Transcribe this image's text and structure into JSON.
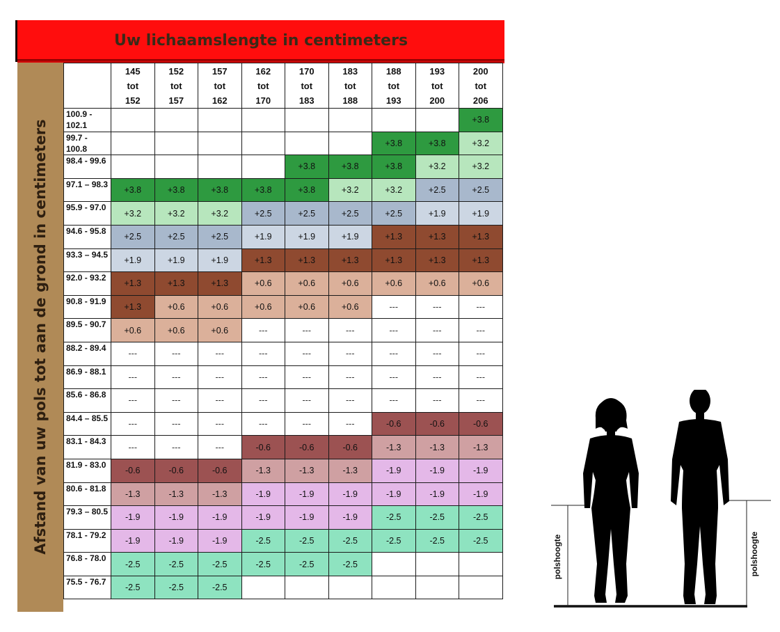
{
  "title": "Uw lichaamslengte in centimeters",
  "side_label": "Afstand van uw pols tot aan de grond in centimeters",
  "figure_label_left": "polshoogte",
  "figure_label_right": "polshoogte",
  "colors": {
    "+3.8": "#2e9a40",
    "+3.2": "#b7e6bd",
    "+2.5": "#a8b8cc",
    "+1.9": "#ccd6e3",
    "+1.3": "#8f4a30",
    "+0.6": "#dbb09a",
    "-0.6": "#9c5252",
    "-1.3": "#cfa0a2",
    "-1.9": "#e4b8e8",
    "-2.5": "#8ee3c0",
    "---": "#ffffff",
    "": "#ffffff"
  },
  "chart_data": {
    "type": "table",
    "title": "Uw lichaamslengte in centimeters",
    "row_axis_label": "Afstand van uw pols tot aan de grond in centimeters",
    "columns": [
      {
        "from": "145",
        "word": "tot",
        "to": "152"
      },
      {
        "from": "152",
        "word": "tot",
        "to": "157"
      },
      {
        "from": "157",
        "word": "tot",
        "to": "162"
      },
      {
        "from": "162",
        "word": "tot",
        "to": "170"
      },
      {
        "from": "170",
        "word": "tot",
        "to": "183"
      },
      {
        "from": "183",
        "word": "tot",
        "to": "188"
      },
      {
        "from": "188",
        "word": "tot",
        "to": "193"
      },
      {
        "from": "193",
        "word": "tot",
        "to": "200"
      },
      {
        "from": "200",
        "word": "tot",
        "to": "206"
      }
    ],
    "rows": [
      {
        "label": "100.9 - 102.1",
        "cells": [
          "",
          "",
          "",
          "",
          "",
          "",
          "",
          "",
          "+3.8"
        ]
      },
      {
        "label": "99.7 - 100.8",
        "cells": [
          "",
          "",
          "",
          "",
          "",
          "",
          "+3.8",
          "+3.8",
          "+3.2"
        ]
      },
      {
        "label": "98.4 - 99.6",
        "cells": [
          "",
          "",
          "",
          "",
          "+3.8",
          "+3.8",
          "+3.8",
          "+3.2",
          "+3.2"
        ]
      },
      {
        "label": "97.1 – 98.3",
        "cells": [
          "+3.8",
          "+3.8",
          "+3.8",
          "+3.8",
          "+3.8",
          "+3.2",
          "+3.2",
          "+2.5",
          "+2.5"
        ]
      },
      {
        "label": "95.9 - 97.0",
        "cells": [
          "+3.2",
          "+3.2",
          "+3.2",
          "+2.5",
          "+2.5",
          "+2.5",
          "+2.5",
          "+1.9",
          "+1.9"
        ]
      },
      {
        "label": "94.6 - 95.8",
        "cells": [
          "+2.5",
          "+2.5",
          "+2.5",
          "+1.9",
          "+1.9",
          "+1.9",
          "+1.3",
          "+1.3",
          "+1.3"
        ]
      },
      {
        "label": "93.3 – 94.5",
        "cells": [
          "+1.9",
          "+1.9",
          "+1.9",
          "+1.3",
          "+1.3",
          "+1.3",
          "+1.3",
          "+1.3",
          "+1.3"
        ]
      },
      {
        "label": "92.0 - 93.2",
        "cells": [
          "+1.3",
          "+1.3",
          "+1.3",
          "+0.6",
          "+0.6",
          "+0.6",
          "+0.6",
          "+0.6",
          "+0.6"
        ]
      },
      {
        "label": "90.8 - 91.9",
        "cells": [
          "+1.3",
          "+0.6",
          "+0.6",
          "+0.6",
          "+0.6",
          "+0.6",
          "---",
          "---",
          "---"
        ]
      },
      {
        "label": "89.5 - 90.7",
        "cells": [
          "+0.6",
          "+0.6",
          "+0.6",
          "---",
          "---",
          "---",
          "---",
          "---",
          "---"
        ]
      },
      {
        "label": "88.2 - 89.4",
        "cells": [
          "---",
          "---",
          "---",
          "---",
          "---",
          "---",
          "---",
          "---",
          "---"
        ]
      },
      {
        "label": "86.9 - 88.1",
        "cells": [
          "---",
          "---",
          "---",
          "---",
          "---",
          "---",
          "---",
          "---",
          "---"
        ]
      },
      {
        "label": "85.6 - 86.8",
        "cells": [
          "---",
          "---",
          "---",
          "---",
          "---",
          "---",
          "---",
          "---",
          "---"
        ]
      },
      {
        "label": "84.4 – 85.5",
        "cells": [
          "---",
          "---",
          "---",
          "---",
          "---",
          "---",
          "-0.6",
          "-0.6",
          "-0.6"
        ]
      },
      {
        "label": "83.1 - 84.3",
        "cells": [
          "---",
          "---",
          "---",
          "-0.6",
          "-0.6",
          "-0.6",
          "-1.3",
          "-1.3",
          "-1.3"
        ]
      },
      {
        "label": "81.9 - 83.0",
        "cells": [
          "-0.6",
          "-0.6",
          "-0.6",
          "-1.3",
          "-1.3",
          "-1.3",
          "-1.9",
          "-1.9",
          "-1.9"
        ]
      },
      {
        "label": "80.6 - 81.8",
        "cells": [
          "-1.3",
          "-1.3",
          "-1.3",
          "-1.9",
          "-1.9",
          "-1.9",
          "-1.9",
          "-1.9",
          "-1.9"
        ]
      },
      {
        "label": "79.3 – 80.5",
        "cells": [
          "-1.9",
          "-1.9",
          "-1.9",
          "-1.9",
          "-1.9",
          "-1.9",
          "-2.5",
          "-2.5",
          "-2.5"
        ]
      },
      {
        "label": "78.1 - 79.2",
        "cells": [
          "-1.9",
          "-1.9",
          "-1.9",
          "-2.5",
          "-2.5",
          "-2.5",
          "-2.5",
          "-2.5",
          "-2.5"
        ]
      },
      {
        "label": "76.8 - 78.0",
        "cells": [
          "-2.5",
          "-2.5",
          "-2.5",
          "-2.5",
          "-2.5",
          "-2.5",
          "",
          "",
          ""
        ]
      },
      {
        "label": "75.5 - 76.7",
        "cells": [
          "-2.5",
          "-2.5",
          "-2.5",
          "",
          "",
          "",
          "",
          "",
          ""
        ]
      }
    ]
  }
}
